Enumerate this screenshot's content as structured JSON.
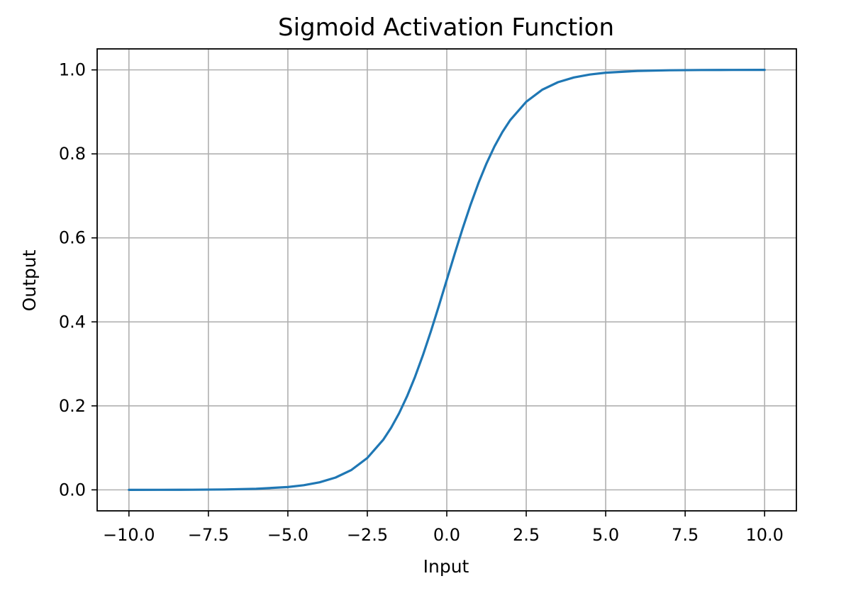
{
  "chart_data": {
    "type": "line",
    "title": "Sigmoid Activation Function",
    "xlabel": "Input",
    "ylabel": "Output",
    "xlim": [
      -11.0,
      11.0
    ],
    "ylim": [
      -0.05,
      1.05
    ],
    "xticks": [
      -10.0,
      -7.5,
      -5.0,
      -2.5,
      0.0,
      2.5,
      5.0,
      7.5,
      10.0
    ],
    "xtick_labels": [
      "−10.0",
      "−7.5",
      "−5.0",
      "−2.5",
      "0.0",
      "2.5",
      "5.0",
      "7.5",
      "10.0"
    ],
    "yticks": [
      0.0,
      0.2,
      0.4,
      0.6,
      0.8,
      1.0
    ],
    "ytick_labels": [
      "0.0",
      "0.2",
      "0.4",
      "0.6",
      "0.8",
      "1.0"
    ],
    "grid": true,
    "series": [
      {
        "color": "#1f77b4",
        "x": [
          -10,
          -9,
          -8,
          -7,
          -6,
          -5,
          -4.5,
          -4,
          -3.5,
          -3,
          -2.5,
          -2,
          -1.75,
          -1.5,
          -1.25,
          -1,
          -0.75,
          -0.5,
          -0.25,
          0,
          0.25,
          0.5,
          0.75,
          1,
          1.25,
          1.5,
          1.75,
          2,
          2.5,
          3,
          3.5,
          4,
          4.5,
          5,
          6,
          7,
          8,
          9,
          10
        ],
        "y": [
          0.0,
          0.0001,
          0.0003,
          0.0009,
          0.0025,
          0.0067,
          0.011,
          0.018,
          0.0293,
          0.0474,
          0.0759,
          0.1192,
          0.148,
          0.1824,
          0.2227,
          0.2689,
          0.3208,
          0.3775,
          0.4378,
          0.5,
          0.5622,
          0.6225,
          0.6792,
          0.7311,
          0.7773,
          0.8176,
          0.852,
          0.8808,
          0.9241,
          0.9526,
          0.9707,
          0.982,
          0.989,
          0.9933,
          0.9975,
          0.9991,
          0.9997,
          0.9999,
          1.0
        ]
      }
    ]
  }
}
